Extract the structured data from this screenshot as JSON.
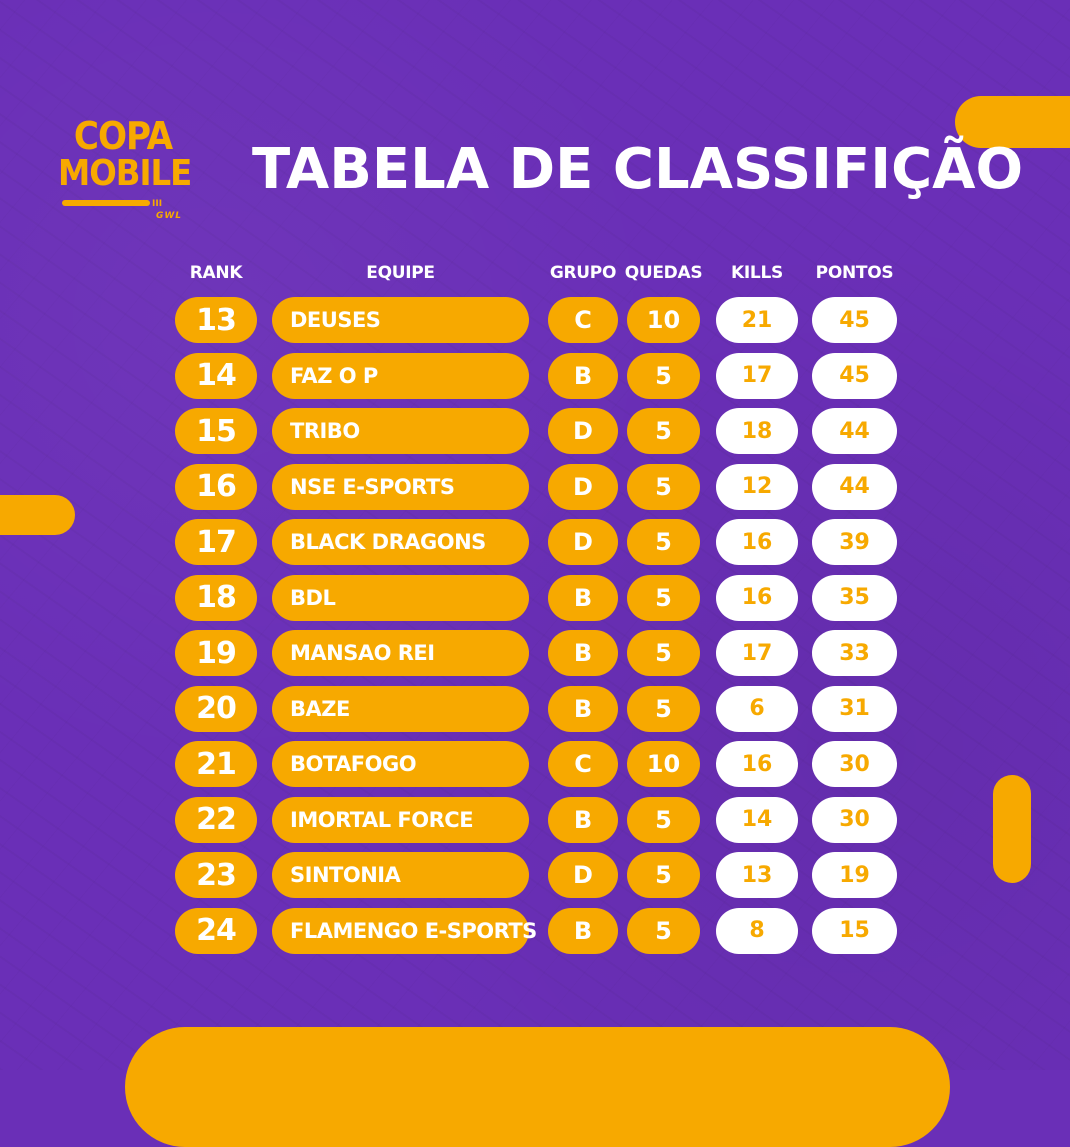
{
  "logo": {
    "line1": "COPA",
    "line2": "MOBILE",
    "subtitle": "GWL",
    "bar_ticks": "III"
  },
  "title": "TABELA DE CLASSIFIÇÃO",
  "headers": {
    "rank": "RANK",
    "team": "EQUIPE",
    "group": "GRUPO",
    "drops": "QUEDAS",
    "kills": "KILLS",
    "points": "PONTOS"
  },
  "colors": {
    "background": "#6a2fb7",
    "accent": "#f7a900",
    "white": "#ffffff"
  },
  "rows": [
    {
      "rank": "13",
      "team": "DEUSES",
      "group": "C",
      "drops": "10",
      "kills": "21",
      "points": "45"
    },
    {
      "rank": "14",
      "team": "FAZ O P",
      "group": "B",
      "drops": "5",
      "kills": "17",
      "points": "45"
    },
    {
      "rank": "15",
      "team": "TRIBO",
      "group": "D",
      "drops": "5",
      "kills": "18",
      "points": "44"
    },
    {
      "rank": "16",
      "team": "NSE E-SPORTS",
      "group": "D",
      "drops": "5",
      "kills": "12",
      "points": "44"
    },
    {
      "rank": "17",
      "team": "BLACK DRAGONS",
      "group": "D",
      "drops": "5",
      "kills": "16",
      "points": "39"
    },
    {
      "rank": "18",
      "team": "BDL",
      "group": "B",
      "drops": "5",
      "kills": "16",
      "points": "35"
    },
    {
      "rank": "19",
      "team": "MANSAO REI",
      "group": "B",
      "drops": "5",
      "kills": "17",
      "points": "33"
    },
    {
      "rank": "20",
      "team": "BAZE",
      "group": "B",
      "drops": "5",
      "kills": "6",
      "points": "31"
    },
    {
      "rank": "21",
      "team": "BOTAFOGO",
      "group": "C",
      "drops": "10",
      "kills": "16",
      "points": "30"
    },
    {
      "rank": "22",
      "team": "IMORTAL FORCE",
      "group": "B",
      "drops": "5",
      "kills": "14",
      "points": "30"
    },
    {
      "rank": "23",
      "team": "SINTONIA",
      "group": "D",
      "drops": "5",
      "kills": "13",
      "points": "19"
    },
    {
      "rank": "24",
      "team": "FLAMENGO E-SPORTS",
      "group": "B",
      "drops": "5",
      "kills": "8",
      "points": "15"
    }
  ]
}
